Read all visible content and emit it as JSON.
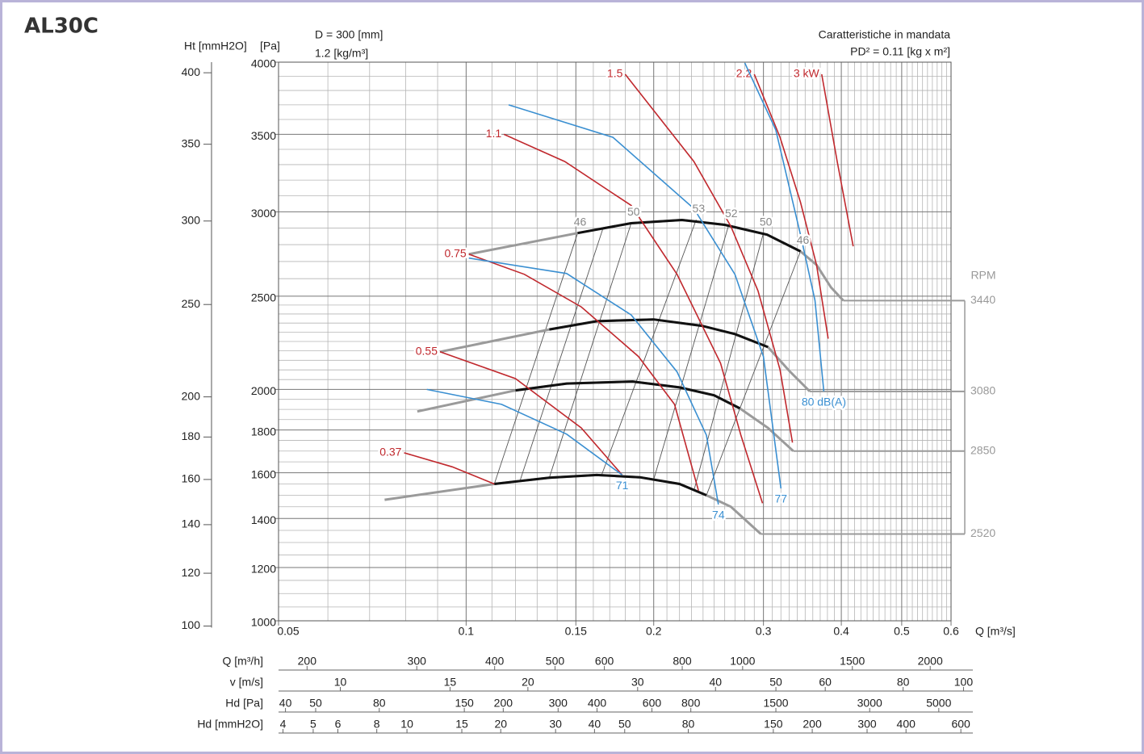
{
  "title": "AL30C",
  "chart_data": {
    "type": "line",
    "annotations": [
      "D = 300 [mm]",
      "1.2 [kg/m³]"
    ],
    "annotations_right": [
      "Caratteristiche in mandata",
      "PD² = 0.11 [kg x m²]"
    ],
    "xlabel": "Q [m³/s]",
    "ylabel": "[Pa]",
    "y2label": "Ht [mmH2O]",
    "xscale": "log",
    "yscale": "sqrt",
    "xlim": [
      0.05,
      0.6
    ],
    "ylim": [
      1000,
      4000
    ],
    "xticks": [
      0.05,
      0.1,
      0.15,
      0.2,
      0.3,
      0.4,
      0.5,
      0.6
    ],
    "yticks": [
      1000,
      1200,
      1400,
      1600,
      1800,
      2000,
      2500,
      3000,
      3500,
      4000
    ],
    "xgrid": [
      0.06,
      0.07,
      0.08,
      0.09,
      0.11,
      0.12,
      0.13,
      0.14,
      0.16,
      0.17,
      0.18,
      0.19,
      0.21,
      0.22,
      0.23,
      0.24,
      0.25,
      0.26,
      0.27,
      0.28,
      0.29,
      0.31,
      0.32,
      0.33,
      0.34,
      0.35,
      0.36,
      0.37,
      0.38,
      0.39,
      0.41,
      0.42,
      0.43,
      0.44,
      0.45,
      0.46,
      0.47,
      0.48,
      0.49,
      0.51,
      0.52,
      0.53,
      0.54,
      0.55,
      0.56,
      0.57,
      0.58,
      0.59
    ],
    "ygrid": [
      1050,
      1100,
      1150,
      1250,
      1300,
      1350,
      1450,
      1500,
      1550,
      1650,
      1700,
      1750,
      1850,
      1900,
      1950,
      2050,
      2100,
      2150,
      2200,
      2250,
      2300,
      2350,
      2400,
      2450,
      2600,
      2700,
      2800,
      2900,
      3100,
      3200,
      3300,
      3400,
      3600,
      3700,
      3800,
      3900
    ],
    "y2scale": "sqrt",
    "y2lim": [
      101.9,
      407.7
    ],
    "y2ticks": [
      100,
      120,
      140,
      160,
      180,
      200,
      250,
      300,
      350,
      400
    ],
    "rpm_label": "RPM",
    "speed_curves": [
      {
        "rpm": 3440,
        "x": [
          0.101,
          0.151,
          0.184,
          0.222,
          0.26,
          0.304,
          0.344,
          0.365,
          0.385,
          0.403
        ],
        "y": [
          2743,
          2870,
          2930,
          2950,
          2920,
          2860,
          2760,
          2680,
          2550,
          2475
        ],
        "work_x": [
          0.151,
          0.184,
          0.222,
          0.26,
          0.304,
          0.344
        ],
        "work_y": [
          2870,
          2930,
          2950,
          2920,
          2860,
          2760
        ]
      },
      {
        "rpm": 3080,
        "x": [
          0.0908,
          0.136,
          0.162,
          0.2,
          0.239,
          0.27,
          0.305,
          0.33,
          0.356
        ],
        "y": [
          2195,
          2315,
          2360,
          2370,
          2335,
          2290,
          2220,
          2095,
          1990
        ],
        "work_x": [
          0.136,
          0.162,
          0.2,
          0.239,
          0.27,
          0.305
        ],
        "work_y": [
          2315,
          2360,
          2370,
          2335,
          2290,
          2220
        ]
      },
      {
        "rpm": 2850,
        "x": [
          0.0835,
          0.12,
          0.145,
          0.185,
          0.22,
          0.25,
          0.275,
          0.305,
          0.335
        ],
        "y": [
          1890,
          1995,
          2030,
          2040,
          2010,
          1970,
          1905,
          1810,
          1700
        ],
        "work_x": [
          0.12,
          0.145,
          0.185,
          0.22,
          0.25,
          0.275
        ],
        "work_y": [
          1995,
          2030,
          2040,
          2010,
          1970,
          1905
        ]
      },
      {
        "rpm": 2520,
        "x": [
          0.074,
          0.111,
          0.136,
          0.162,
          0.19,
          0.22,
          0.243,
          0.266,
          0.297
        ],
        "y": [
          1480,
          1550,
          1578,
          1590,
          1580,
          1550,
          1500,
          1450,
          1335
        ],
        "work_x": [
          0.111,
          0.136,
          0.162,
          0.19,
          0.22,
          0.243
        ],
        "work_y": [
          1550,
          1578,
          1590,
          1580,
          1550,
          1500
        ]
      }
    ],
    "speed_color": "#9a9a9a",
    "work_color": "#111111",
    "system_lines": [
      {
        "label": 46,
        "x": [
          0.151,
          0.111
        ],
        "y": [
          2870,
          1550
        ]
      },
      {
        "x": [
          0.166,
          0.122
        ],
        "y": [
          2905,
          1563
        ]
      },
      {
        "label": 50,
        "x": [
          0.184,
          0.136
        ],
        "y": [
          2930,
          1578
        ]
      },
      {
        "label": 53,
        "x": [
          0.234,
          0.165
        ],
        "y": [
          2952,
          1590
        ]
      },
      {
        "label": 52,
        "x": [
          0.264,
          0.2
        ],
        "y": [
          2922,
          1570
        ]
      },
      {
        "label": 50,
        "x": [
          0.3,
          0.232
        ],
        "y": [
          2870,
          1520
        ]
      },
      {
        "label": 46,
        "x": [
          0.344,
          0.243
        ],
        "y": [
          2760,
          1500
        ]
      }
    ],
    "series": [
      {
        "name": "0.37",
        "color": "#c0282d",
        "label_pos": "start",
        "x": [
          0.0795,
          0.095,
          0.111
        ],
        "y": [
          1692,
          1627,
          1550
        ]
      },
      {
        "name": "0.55",
        "color": "#c0282d",
        "label_pos": "start",
        "x": [
          0.0908,
          0.12,
          0.153,
          0.178
        ],
        "y": [
          2195,
          2055,
          1810,
          1590
        ]
      },
      {
        "name": "0.75",
        "color": "#c0282d",
        "label_pos": "start",
        "x": [
          0.101,
          0.124,
          0.153,
          0.189,
          0.216,
          0.236
        ],
        "y": [
          2743,
          2625,
          2440,
          2170,
          1925,
          1520
        ]
      },
      {
        "name": "1.1",
        "color": "#c0282d",
        "label_pos": "start",
        "x": [
          0.115,
          0.144,
          0.184,
          0.218,
          0.256,
          0.276,
          0.299
        ],
        "y": [
          3500,
          3320,
          3040,
          2625,
          2135,
          1775,
          1465
        ]
      },
      {
        "name": "1.5",
        "color": "#c0282d",
        "label_pos": "start",
        "x": [
          0.18,
          0.232,
          0.266,
          0.294,
          0.319,
          0.334
        ],
        "y": [
          3914,
          3320,
          2910,
          2530,
          2100,
          1740
        ]
      },
      {
        "name": "2.2",
        "color": "#c0282d",
        "label_pos": "start",
        "x": [
          0.29,
          0.319,
          0.344,
          0.365,
          0.381
        ],
        "y": [
          3914,
          3480,
          3060,
          2680,
          2265
        ]
      },
      {
        "name": "3 kW",
        "color": "#c0282d",
        "label_pos": "start",
        "x": [
          0.372,
          0.394,
          0.418
        ],
        "y": [
          3914,
          3320,
          2790
        ]
      },
      {
        "name": "71",
        "color": "#3a8fd1",
        "label_pos": "end",
        "x": [
          0.0865,
          0.114,
          0.145,
          0.178
        ],
        "y": [
          2000,
          1925,
          1780,
          1590
        ]
      },
      {
        "name": "74",
        "color": "#3a8fd1",
        "label_pos": "end",
        "x": [
          0.101,
          0.145,
          0.184,
          0.218,
          0.243,
          0.254
        ],
        "y": [
          2720,
          2630,
          2395,
          2090,
          1775,
          1460
        ]
      },
      {
        "name": "77",
        "color": "#3a8fd1",
        "label_pos": "end",
        "x": [
          0.117,
          0.172,
          0.232,
          0.27,
          0.3,
          0.32
        ],
        "y": [
          3700,
          3480,
          3020,
          2625,
          2170,
          1530
        ]
      },
      {
        "name": "80 dB(A)",
        "color": "#3a8fd1",
        "label_pos": "end",
        "x": [
          0.28,
          0.314,
          0.344,
          0.363,
          0.375
        ],
        "y": [
          3995,
          3530,
          2860,
          2475,
          1990
        ]
      }
    ],
    "scales": [
      {
        "label": "Q [m³/h]",
        "scale": "log",
        "lim": [
          180,
          2160
        ],
        "ticks": [
          200,
          300,
          400,
          500,
          600,
          800,
          1000,
          1500,
          2000
        ]
      },
      {
        "label": "v [m/s]",
        "scale": "log",
        "lim": [
          7.96,
          95.5
        ],
        "ticks": [
          10,
          15,
          20,
          30,
          40,
          50,
          60,
          80,
          100
        ]
      },
      {
        "label": "Hd [Pa]",
        "scale": "log",
        "lim": [
          38.0,
          5474
        ],
        "ticks": [
          40,
          50,
          80,
          150,
          200,
          300,
          400,
          600,
          800,
          1500,
          3000,
          5000
        ]
      },
      {
        "label": "Hd [mmH2O]",
        "scale": "log",
        "lim": [
          3.87,
          558
        ],
        "ticks": [
          4,
          5,
          6,
          8,
          10,
          15,
          20,
          30,
          40,
          50,
          80,
          150,
          200,
          300,
          400,
          600
        ]
      }
    ]
  }
}
